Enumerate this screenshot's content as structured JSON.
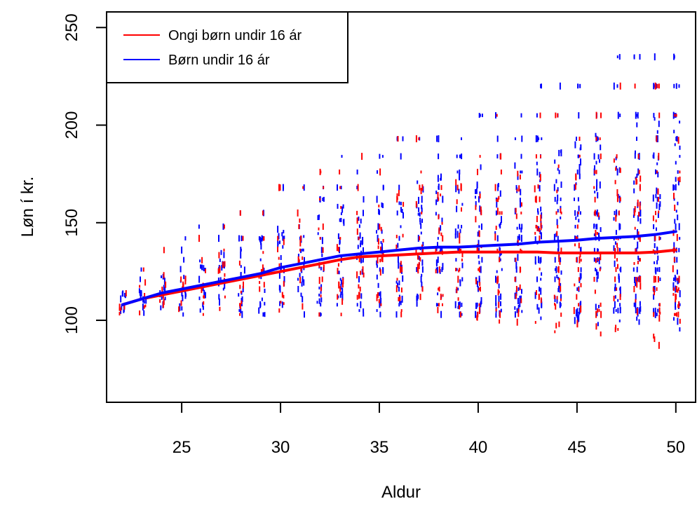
{
  "chart_data": {
    "type": "scatter",
    "title": "",
    "xlabel": "Aldur",
    "ylabel": "Løn í kr.",
    "xlim": [
      21.2,
      51.0
    ],
    "ylim": [
      58,
      258
    ],
    "x_ticks": [
      25,
      30,
      35,
      40,
      45,
      50
    ],
    "y_ticks": [
      100,
      150,
      200,
      250
    ],
    "grid": false,
    "legend_position": "top-left",
    "series": [
      {
        "name": "Ongi børn undir 16 ár",
        "color": "#ff0000",
        "kind": "scatter+smooth-line",
        "line": {
          "x": [
            22,
            23,
            24,
            25,
            26,
            27,
            28,
            29,
            30,
            31,
            32,
            33,
            34,
            35,
            36,
            37,
            38,
            39,
            40,
            41,
            42,
            43,
            44,
            45,
            46,
            47,
            48,
            49,
            50
          ],
          "y": [
            108,
            111,
            113,
            115,
            117,
            119,
            121,
            123,
            125,
            127,
            129,
            131,
            132.5,
            133,
            133.5,
            134,
            134.5,
            135,
            135,
            135,
            135,
            135,
            134.5,
            134.5,
            134.5,
            134.5,
            134.5,
            135,
            136
          ]
        }
      },
      {
        "name": "Børn undir 16 ár",
        "color": "#0000ff",
        "kind": "scatter+smooth-line",
        "line": {
          "x": [
            22,
            23,
            24,
            25,
            26,
            27,
            28,
            29,
            30,
            31,
            32,
            33,
            34,
            35,
            36,
            37,
            38,
            39,
            40,
            41,
            42,
            43,
            44,
            45,
            46,
            47,
            48,
            49,
            50
          ],
          "y": [
            108,
            111,
            114,
            116,
            118,
            120,
            122,
            124,
            127,
            129,
            131,
            133,
            134,
            135,
            136,
            137,
            137.5,
            137.5,
            138,
            138.5,
            139,
            140,
            140.5,
            141,
            142,
            142.5,
            143,
            144,
            145.5
          ]
        }
      }
    ]
  }
}
